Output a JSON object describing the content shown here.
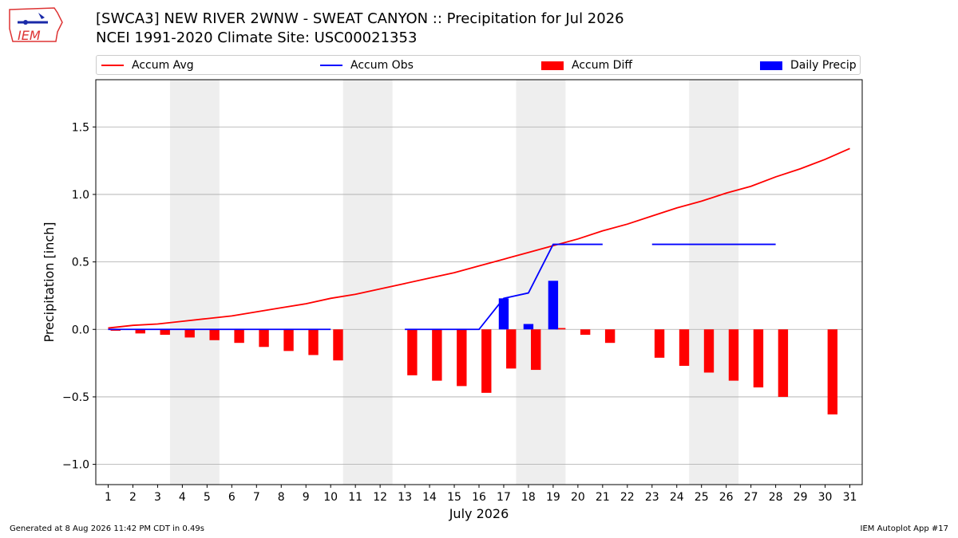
{
  "header": {
    "title_line1": "[SWCA3] NEW RIVER 2WNW - SWEAT CANYON :: Precipitation for Jul 2026",
    "title_line2": "NCEI 1991-2020 Climate Site: USC00021353",
    "logo_text": "IEM"
  },
  "footer": {
    "generated": "Generated at 8 Aug 2026 11:42 PM CDT in 0.49s",
    "app": "IEM Autoplot App #17"
  },
  "colors": {
    "accum_avg": "#ff0000",
    "accum_obs": "#0000ff",
    "accum_diff": "#ff0000",
    "daily_precip": "#0000ff",
    "weekend_band": "#eeeeee",
    "grid": "#aaaaaa"
  },
  "chart_data": {
    "type": "bar",
    "title": "[SWCA3] NEW RIVER 2WNW - SWEAT CANYON :: Precipitation for Jul 2026",
    "subtitle": "NCEI 1991-2020 Climate Site: USC00021353",
    "xlabel": "July 2026",
    "ylabel": "Precipitation [inch]",
    "xlim": [
      0.5,
      31.5
    ],
    "ylim": [
      -1.15,
      1.85
    ],
    "yticks": [
      -1.0,
      -0.5,
      0.0,
      0.5,
      1.0,
      1.5
    ],
    "ytick_labels": [
      "−1.0",
      "−0.5",
      "0.0",
      "0.5",
      "1.0",
      "1.5"
    ],
    "xticks": [
      1,
      2,
      3,
      4,
      5,
      6,
      7,
      8,
      9,
      10,
      11,
      12,
      13,
      14,
      15,
      16,
      17,
      18,
      19,
      20,
      21,
      22,
      23,
      24,
      25,
      26,
      27,
      28,
      29,
      30,
      31
    ],
    "grid": "horizontal",
    "legend_position": "top",
    "weekend_shading": [
      [
        3.5,
        5.5
      ],
      [
        10.5,
        12.5
      ],
      [
        17.5,
        19.5
      ],
      [
        24.5,
        26.5
      ]
    ],
    "series": [
      {
        "name": "Accum Avg",
        "kind": "line",
        "x": [
          1,
          2,
          3,
          4,
          5,
          6,
          7,
          8,
          9,
          10,
          11,
          12,
          13,
          14,
          15,
          16,
          17,
          18,
          19,
          20,
          21,
          22,
          23,
          24,
          25,
          26,
          27,
          28,
          29,
          30,
          31
        ],
        "values": [
          0.01,
          0.03,
          0.04,
          0.06,
          0.08,
          0.1,
          0.13,
          0.16,
          0.19,
          0.23,
          0.26,
          0.3,
          0.34,
          0.38,
          0.42,
          0.47,
          0.52,
          0.57,
          0.62,
          0.67,
          0.73,
          0.78,
          0.84,
          0.9,
          0.95,
          1.01,
          1.06,
          1.13,
          1.19,
          1.26,
          1.34
        ]
      },
      {
        "name": "Accum Obs",
        "kind": "line",
        "segments": [
          {
            "x": [
              1,
              2,
              3,
              4,
              5,
              6,
              7,
              8,
              9,
              10
            ],
            "values": [
              0,
              0,
              0,
              0,
              0,
              0,
              0,
              0,
              0,
              0
            ]
          },
          {
            "x": [
              13,
              14,
              15,
              16,
              17,
              18,
              19,
              20,
              21
            ],
            "values": [
              0,
              0,
              0,
              0,
              0.23,
              0.27,
              0.63,
              0.63,
              0.63
            ]
          },
          {
            "x": [
              23,
              24,
              25,
              26,
              27,
              28
            ],
            "values": [
              0.63,
              0.63,
              0.63,
              0.63,
              0.63,
              0.63
            ]
          }
        ]
      },
      {
        "name": "Accum Diff",
        "kind": "bar",
        "x": [
          1,
          2,
          3,
          4,
          5,
          6,
          7,
          8,
          9,
          10,
          13,
          14,
          15,
          16,
          17,
          18,
          19,
          20,
          21,
          23,
          24,
          25,
          26,
          27,
          28,
          30
        ],
        "values": [
          -0.01,
          -0.03,
          -0.04,
          -0.06,
          -0.08,
          -0.1,
          -0.13,
          -0.16,
          -0.19,
          -0.23,
          -0.34,
          -0.38,
          -0.42,
          -0.47,
          -0.29,
          -0.3,
          0.01,
          -0.04,
          -0.1,
          -0.21,
          -0.27,
          -0.32,
          -0.38,
          -0.43,
          -0.5,
          -0.63
        ]
      },
      {
        "name": "Daily Precip",
        "kind": "bar",
        "x": [
          17,
          18,
          19
        ],
        "values": [
          0.23,
          0.04,
          0.36
        ]
      }
    ]
  }
}
